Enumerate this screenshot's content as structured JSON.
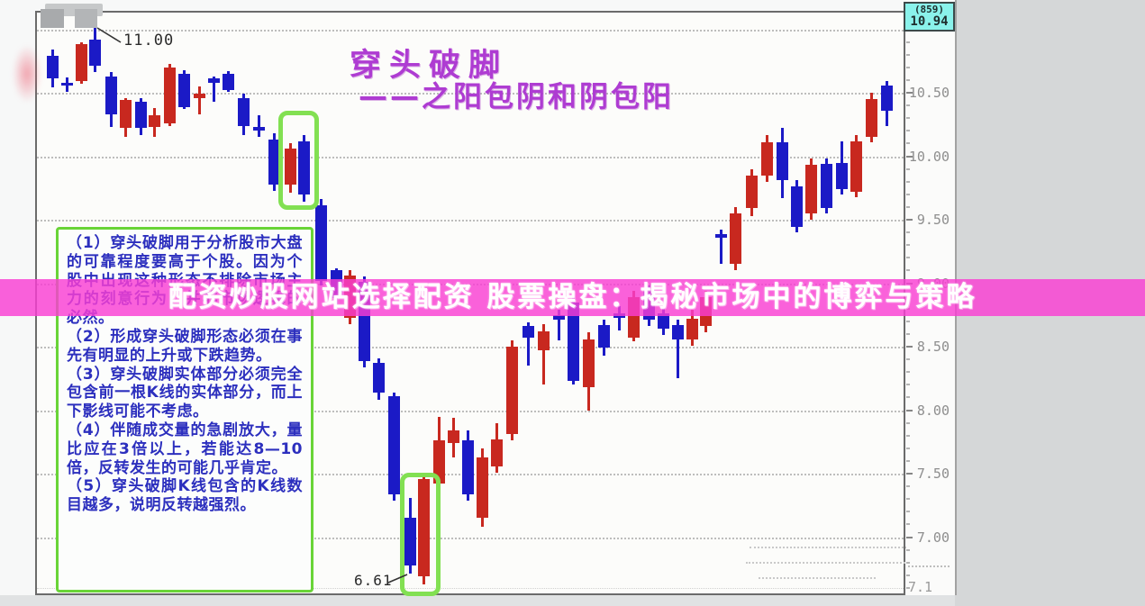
{
  "overlay_banner": {
    "text": "配资炒股网站选择配资 股票操盘：揭秘市场中的博弈与策略"
  },
  "title": {
    "line1": "穿头破脚",
    "line2": "——之阳包阴和阴包阳"
  },
  "callouts": {
    "high": "11.00",
    "low": "6.61"
  },
  "quote_box": {
    "code": "(859)",
    "price": "10.94"
  },
  "axis": {
    "tick_labels": [
      "10.50",
      "10.00",
      "9.50",
      "9.00",
      "8.50",
      "8.00",
      "7.50",
      "7.00"
    ],
    "partial_bottom": "7.1"
  },
  "notes": {
    "items": [
      "（1）穿头破脚用于分析股市大盘的可靠程度要高于个股。因为个股中出现这种形态不排除市场主力的刻意行为，并非市场逻辑的必然。",
      "（2）形成穿头破脚形态必须在事先有明显的上升或下跌趋势。",
      "（3）穿头破脚实体部分必须完全包含前一根K线的实体部分，而上下影线可能不考虑。",
      "（4）伴随成交量的急剧放大，量比应在3倍以上，若能达8—10倍，反转发生的可能几乎肯定。",
      "（5）穿头破脚K线包含的K线数目越多，说明反转越强烈。"
    ]
  },
  "colors": {
    "bull_red": "#c8281f",
    "bear_blue": "#1b1ac6",
    "banner_magenta": "#f93ed3",
    "title_purple": "#ae3cd2",
    "note_blue": "#2c2fbe",
    "highlight_green": "#82e052",
    "quote_cyan": "#8af2eb"
  },
  "chart_data": {
    "type": "candlestick",
    "title": "穿头破脚——之阳包阴和阴包阳",
    "price_axis": {
      "visible_range": [
        6.55,
        11.15
      ],
      "gridline_step": 0.5,
      "gridlines": [
        11.0,
        10.5,
        10.0,
        9.5,
        9.0,
        8.5,
        8.0,
        7.5,
        7.0
      ],
      "tick_labels": [
        "10.50",
        "10.00",
        "9.50",
        "9.00",
        "8.50",
        "8.00",
        "7.50",
        "7.00"
      ],
      "last_price": 10.94,
      "bar_count_label": "(859)"
    },
    "annotations": {
      "high_label": "11.00",
      "low_label": "6.61"
    },
    "highlights": [
      {
        "name": "yin-engulfs-yang pair (阴包阳)",
        "candle_indices": [
          16,
          17
        ]
      },
      {
        "name": "yang-engulfs-yin pair (阳包阴)",
        "candle_indices": [
          24,
          25
        ]
      }
    ],
    "candle_format": [
      "x_px",
      "color(r=yang/up, b=yin/down)",
      "body_high",
      "body_low",
      "wick_high",
      "wick_low"
    ],
    "candles": [
      [
        52,
        "b",
        10.79,
        10.61,
        10.84,
        10.54
      ],
      [
        68,
        "b",
        10.58,
        10.56,
        10.62,
        10.51
      ],
      [
        84,
        "r",
        10.88,
        10.59,
        10.9,
        10.57
      ],
      [
        99,
        "b",
        10.92,
        10.71,
        11.02,
        10.66
      ],
      [
        117,
        "b",
        10.63,
        10.33,
        10.66,
        10.23
      ],
      [
        133,
        "r",
        10.44,
        10.22,
        10.46,
        10.15
      ],
      [
        150,
        "b",
        10.43,
        10.22,
        10.46,
        10.17
      ],
      [
        165,
        "r",
        10.32,
        10.23,
        10.38,
        10.15
      ],
      [
        182,
        "r",
        10.7,
        10.26,
        10.73,
        10.24
      ],
      [
        198,
        "b",
        10.65,
        10.39,
        10.68,
        10.37
      ],
      [
        215,
        "r",
        10.49,
        10.46,
        10.55,
        10.33
      ],
      [
        231,
        "b",
        10.61,
        10.58,
        10.63,
        10.43
      ],
      [
        247,
        "b",
        10.65,
        10.52,
        10.67,
        10.51
      ],
      [
        264,
        "b",
        10.46,
        10.24,
        10.49,
        10.17
      ],
      [
        281,
        "b",
        10.23,
        10.2,
        10.32,
        10.15
      ],
      [
        298,
        "b",
        10.13,
        9.78,
        10.18,
        9.73
      ],
      [
        316,
        "r",
        10.06,
        9.78,
        10.1,
        9.71
      ],
      [
        331,
        "b",
        10.12,
        9.7,
        10.17,
        9.64
      ],
      [
        350,
        "b",
        9.61,
        9.02,
        9.66,
        8.98
      ],
      [
        367,
        "b",
        9.1,
        8.88,
        9.12,
        8.81
      ],
      [
        382,
        "r",
        9.06,
        8.73,
        9.1,
        8.68
      ],
      [
        398,
        "b",
        9.01,
        8.39,
        9.05,
        8.34
      ],
      [
        414,
        "b",
        8.37,
        8.14,
        8.41,
        8.08
      ],
      [
        431,
        "b",
        8.11,
        7.34,
        8.14,
        7.29
      ],
      [
        449,
        "b",
        7.15,
        6.78,
        7.31,
        6.71
      ],
      [
        464,
        "r",
        7.46,
        6.69,
        7.51,
        6.63
      ],
      [
        481,
        "r",
        7.76,
        7.42,
        7.95,
        7.13
      ],
      [
        497,
        "r",
        7.84,
        7.74,
        7.94,
        7.63
      ],
      [
        513,
        "b",
        7.76,
        7.34,
        7.84,
        7.29
      ],
      [
        529,
        "r",
        7.63,
        7.15,
        7.7,
        7.08
      ],
      [
        545,
        "r",
        7.77,
        7.56,
        7.9,
        7.51
      ],
      [
        562,
        "r",
        8.5,
        7.81,
        8.55,
        7.76
      ],
      [
        580,
        "b",
        8.66,
        8.57,
        8.69,
        8.35
      ],
      [
        597,
        "r",
        8.62,
        8.47,
        8.68,
        8.2
      ],
      [
        614,
        "b",
        8.75,
        8.71,
        8.79,
        8.55
      ],
      [
        630,
        "b",
        8.85,
        8.23,
        8.89,
        8.2
      ],
      [
        647,
        "r",
        8.56,
        8.18,
        8.61,
        8.0
      ],
      [
        664,
        "b",
        8.67,
        8.49,
        8.71,
        8.43
      ],
      [
        681,
        "b",
        8.76,
        8.73,
        8.82,
        8.63
      ],
      [
        697,
        "r",
        8.89,
        8.57,
        8.94,
        8.54
      ],
      [
        714,
        "b",
        8.95,
        8.71,
        8.98,
        8.66
      ],
      [
        730,
        "b",
        8.76,
        8.64,
        8.8,
        8.59
      ],
      [
        746,
        "b",
        8.67,
        8.56,
        8.71,
        8.25
      ],
      [
        762,
        "r",
        8.72,
        8.56,
        8.79,
        8.51
      ],
      [
        777,
        "r",
        8.89,
        8.66,
        8.94,
        8.61
      ],
      [
        794,
        "b",
        9.39,
        9.36,
        9.42,
        9.15
      ],
      [
        810,
        "r",
        9.55,
        9.15,
        9.6,
        9.1
      ],
      [
        828,
        "r",
        9.85,
        9.59,
        9.9,
        9.53
      ],
      [
        845,
        "r",
        10.11,
        9.85,
        10.17,
        9.8
      ],
      [
        862,
        "b",
        10.11,
        9.81,
        10.22,
        9.67
      ],
      [
        878,
        "b",
        9.76,
        9.44,
        9.81,
        9.4
      ],
      [
        894,
        "r",
        9.93,
        9.55,
        9.98,
        9.5
      ],
      [
        911,
        "b",
        9.94,
        9.59,
        9.98,
        9.55
      ],
      [
        928,
        "b",
        9.95,
        9.74,
        10.12,
        9.7
      ],
      [
        944,
        "r",
        10.12,
        9.72,
        10.17,
        9.68
      ],
      [
        961,
        "r",
        10.45,
        10.15,
        10.5,
        10.11
      ],
      [
        978,
        "b",
        10.56,
        10.36,
        10.59,
        10.24
      ]
    ]
  }
}
